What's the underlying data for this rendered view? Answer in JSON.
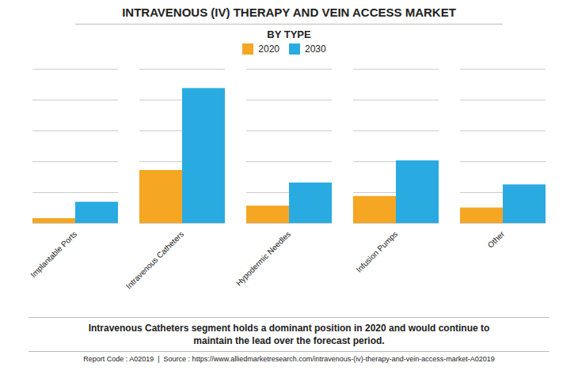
{
  "chart_data": {
    "type": "bar",
    "title": "INTRAVENOUS (IV) THERAPY AND VEIN ACCESS MARKET",
    "subtitle": "BY TYPE",
    "categories": [
      "Implantable Ports",
      "Intravenous Catheters",
      "Hypodermic Needles",
      "Infusion Pumps",
      "Other"
    ],
    "series": [
      {
        "name": "2020",
        "color": "#F5A623",
        "values": [
          0.5,
          5.5,
          1.8,
          2.8,
          1.6
        ]
      },
      {
        "name": "2030",
        "color": "#29ABE2",
        "values": [
          2.2,
          14.0,
          4.2,
          6.5,
          4.0
        ]
      }
    ],
    "ylim": [
      0,
      16
    ],
    "yticks": [
      0,
      3.2,
      6.4,
      9.6,
      12.8,
      16
    ],
    "grid": true,
    "legend": "top",
    "tick_labels": "x",
    "annotation": "Intravenous Catheters segment holds a dominant position in 2020 and would continue to\nmaintain the lead over the forecast period.",
    "footer": "Report Code : A02019  |  Source : https://www.alliedmarketresearch.com/intravenous-(iv)-therapy-and-vein-access-market-A02019"
  }
}
